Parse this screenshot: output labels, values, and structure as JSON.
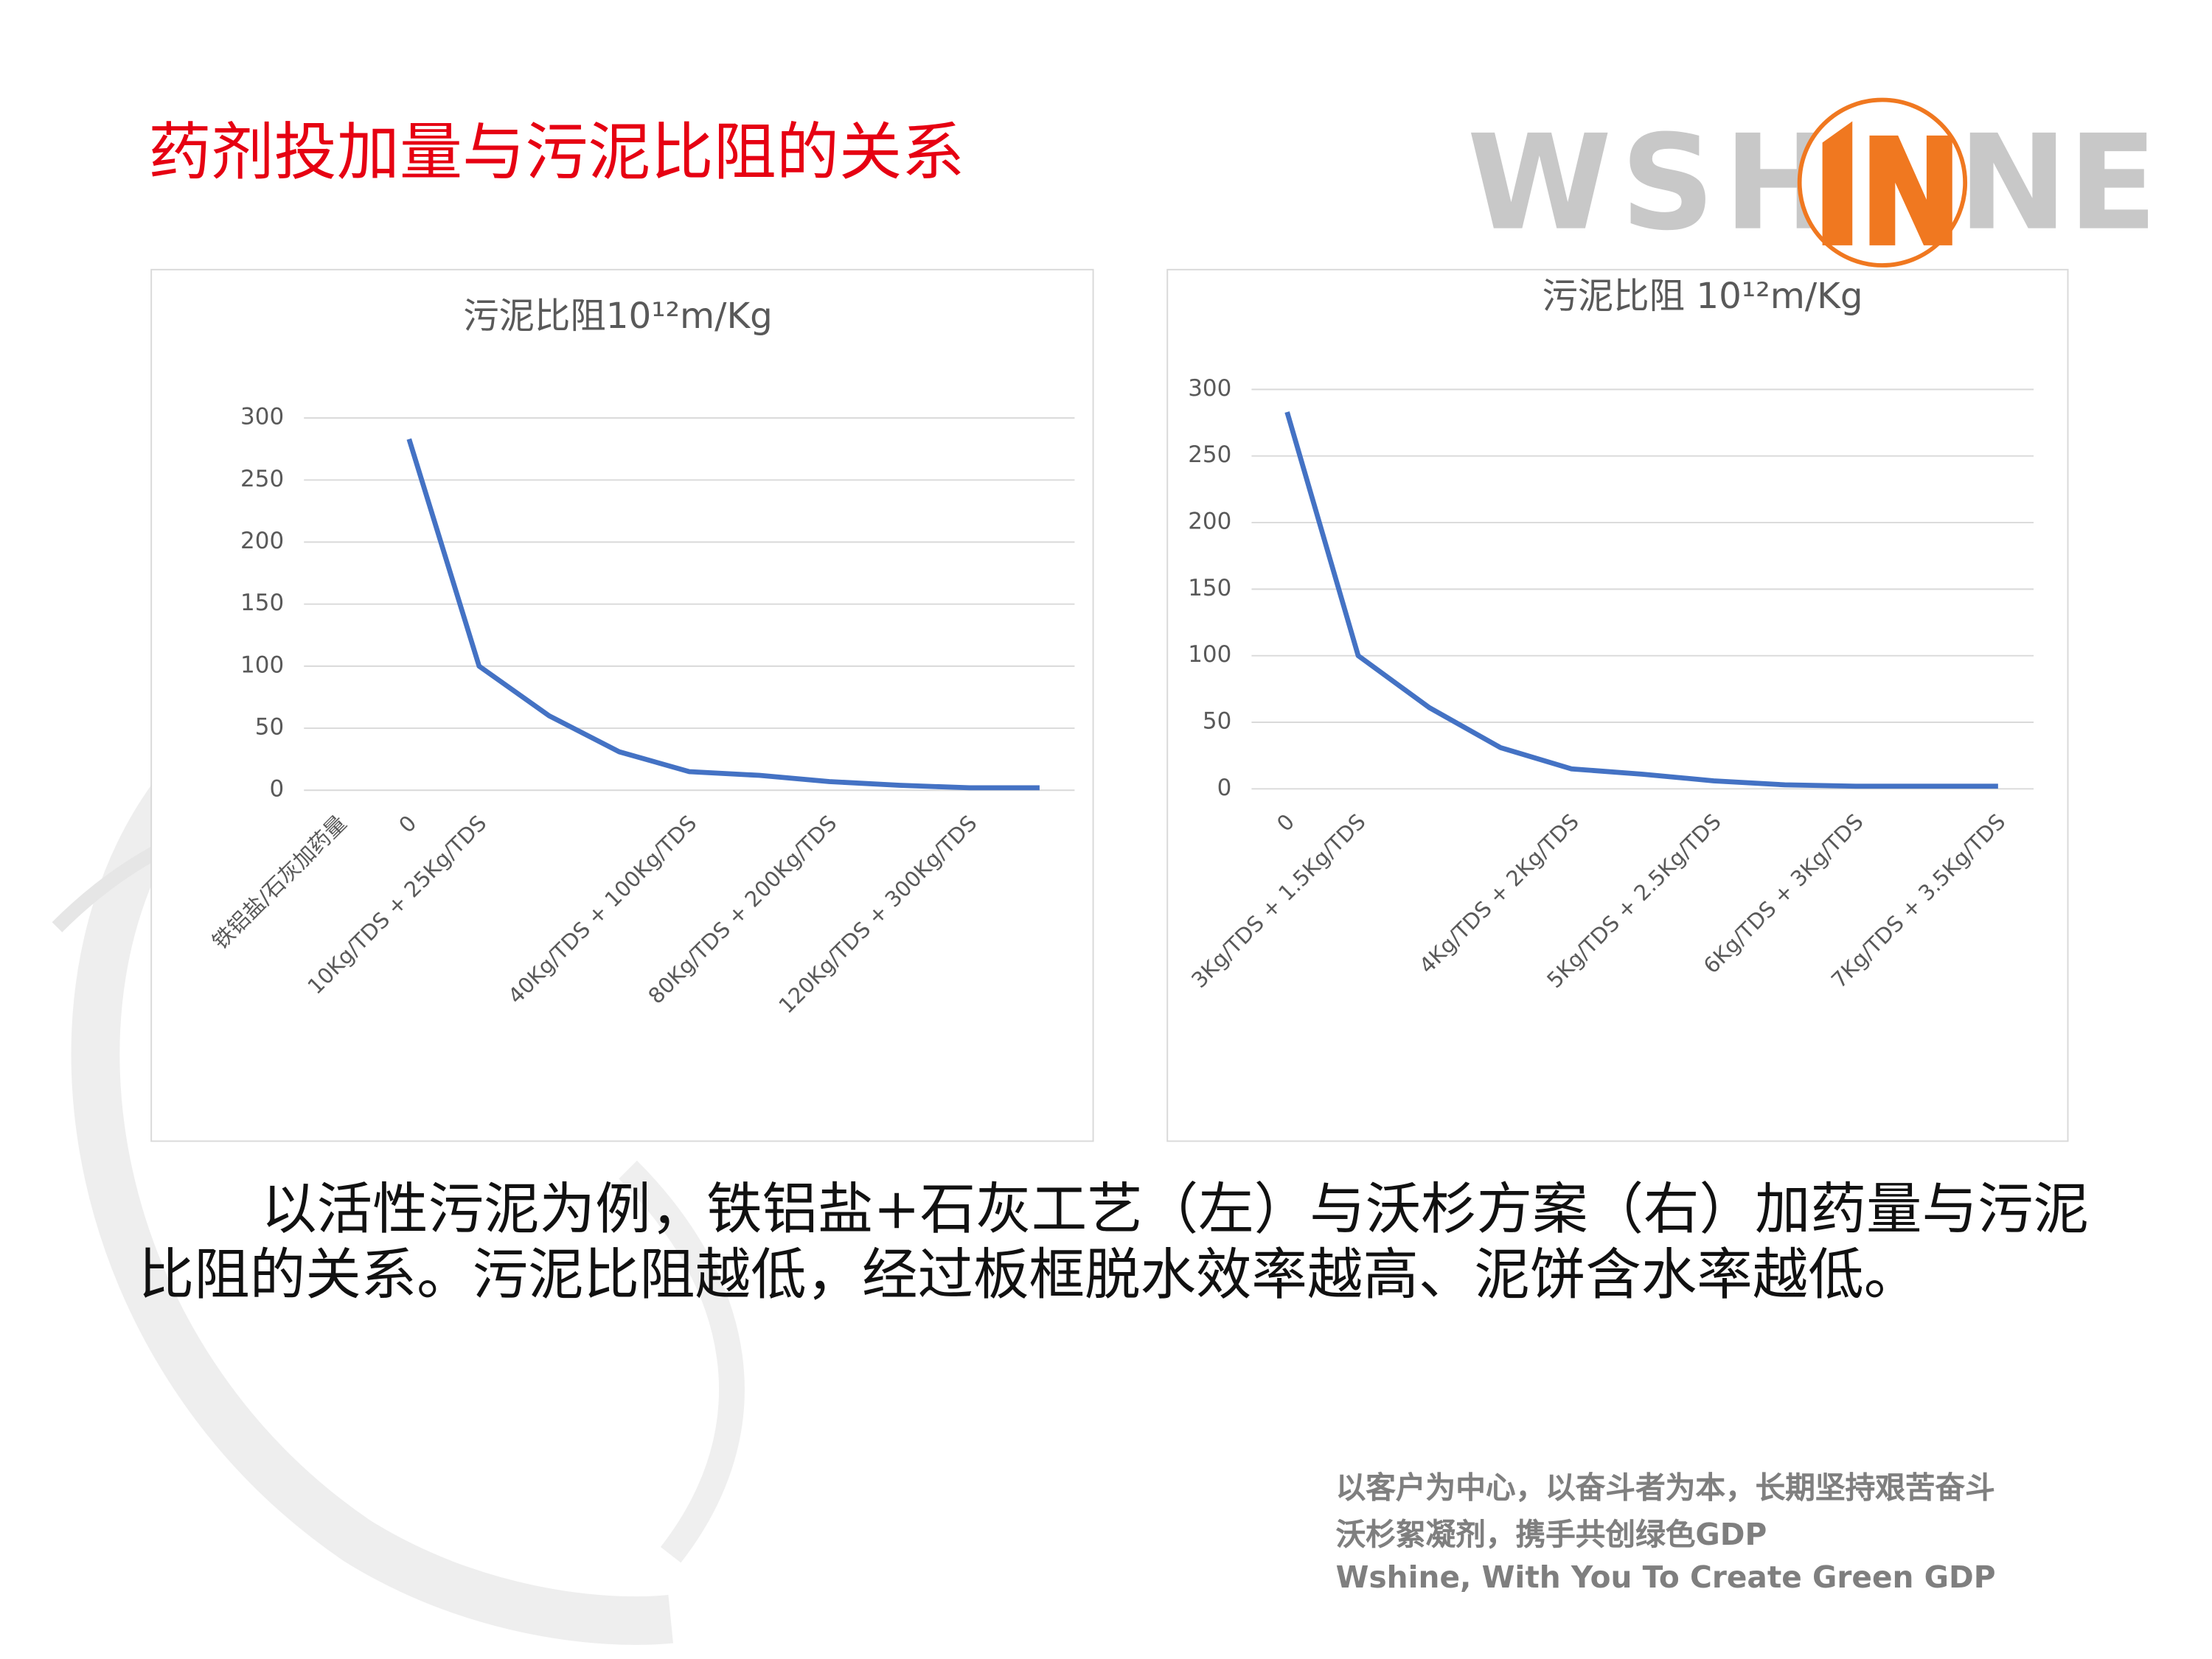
{
  "header": {
    "title": "药剂投加量与污泥比阻的关系",
    "logo": [
      "WSH",
      "NE"
    ]
  },
  "chart_data": [
    {
      "type": "line",
      "title": "污泥比阻10¹²m/Kg",
      "categories": [
        "铁铝盐/石灰加药量",
        "0",
        "10Kg/TDS + 25Kg/TDS",
        null,
        null,
        "40Kg/TDS + 100Kg/TDS",
        null,
        "80Kg/TDS + 200Kg/TDS",
        null,
        "120Kg/TDS + 300Kg/TDS",
        null
      ],
      "values": [
        null,
        283,
        100,
        60,
        31,
        15,
        12,
        7,
        4,
        2,
        2
      ],
      "color": "#4472c4",
      "ylim": [
        0,
        300
      ],
      "yticks": [
        0,
        50,
        100,
        150,
        200,
        250,
        300
      ],
      "grid": true
    },
    {
      "type": "line",
      "title": "污泥比阻 10¹²m/Kg",
      "categories": [
        "0",
        "3Kg/TDS + 1.5Kg/TDS",
        null,
        null,
        "4Kg/TDS + 2Kg/TDS",
        null,
        "5Kg/TDS + 2.5Kg/TDS",
        null,
        "6Kg/TDS + 3Kg/TDS",
        null,
        "7Kg/TDS + 3.5Kg/TDS"
      ],
      "values": [
        283,
        100,
        61,
        31,
        15,
        11,
        6,
        3,
        2,
        2,
        2
      ],
      "color": "#4472c4",
      "ylim": [
        0,
        300
      ],
      "yticks": [
        0,
        50,
        100,
        150,
        200,
        250,
        300
      ],
      "grid": true
    }
  ],
  "body": "以活性污泥为例，铁铝盐+石灰工艺（左）与沃杉方案（右）加药量与污泥比阻的关系。污泥比阻越低，经过板框脱水效率越高、泥饼含水率越低。",
  "footer": [
    "以客户为中心，以奋斗者为本，长期坚持艰苦奋斗",
    "沃杉絮凝剂，携手共创绿色GDP",
    "Wshine, With You To Create Green GDP"
  ]
}
